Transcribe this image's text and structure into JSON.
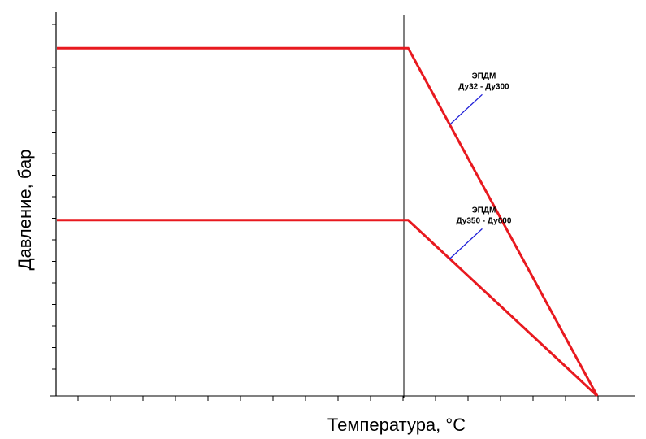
{
  "chart_data": {
    "type": "line",
    "title": "",
    "xlabel": "Температура,  °C",
    "ylabel": "Давление, бар",
    "tick_labels_shown": false,
    "grid": false,
    "xlim": [
      0,
      100
    ],
    "ylim": [
      0,
      100
    ],
    "vertical_reference_x": 65,
    "series": [
      {
        "name": "ЭПДМ Ду32 - Ду300",
        "x": [
          0,
          65,
          100
        ],
        "y": [
          93,
          93,
          0
        ]
      },
      {
        "name": "ЭПДМ Ду350 - Ду600",
        "x": [
          0,
          65,
          100
        ],
        "y": [
          47,
          47,
          0
        ]
      }
    ],
    "annotations": [
      {
        "lines": [
          "ЭПДМ",
          "Ду32 - Ду300"
        ],
        "series": 0
      },
      {
        "lines": [
          "ЭПДМ",
          "Ду350 - Ду600"
        ],
        "series": 1
      }
    ],
    "colors": {
      "series": "#e8191f",
      "leader": "#1f1fd8",
      "axis": "#000000"
    }
  }
}
